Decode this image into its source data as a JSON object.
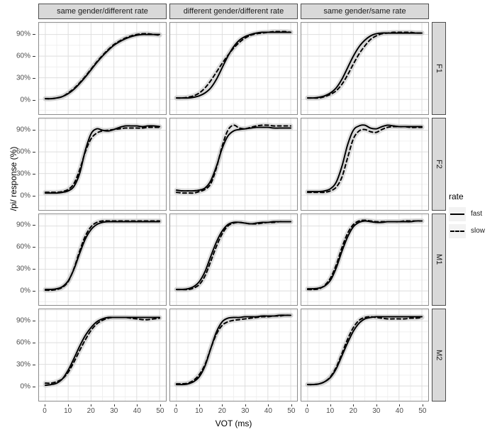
{
  "figure": {
    "y_axis_title": "/pi/ response (%)",
    "x_axis_title": "VOT (ms)"
  },
  "legend": {
    "title": "rate",
    "entries": [
      {
        "label": "fast",
        "style": "solid"
      },
      {
        "label": "slow",
        "style": "dashed"
      }
    ]
  },
  "colors": {
    "strip_bg": "#d9d9d9",
    "strip_border": "#4d4d4d",
    "panel_border": "#8c8c8c",
    "grid_major": "#dedede",
    "grid_minor": "#f0f0f0",
    "line": "#000000",
    "confidence_band": "#c8c8c8",
    "tick_label": "#4d4d4d"
  },
  "chart_data": {
    "type": "line",
    "title": "",
    "xlabel": "VOT (ms)",
    "ylabel": "/pi/ response (%)",
    "xlim": [
      0,
      50
    ],
    "ylim": [
      0,
      100
    ],
    "grid": true,
    "legend_position": "right",
    "x_ticks": [
      0,
      10,
      20,
      30,
      40,
      50
    ],
    "x_minor_ticks": [
      5,
      15,
      25,
      35,
      45
    ],
    "y_ticks": [
      0,
      30,
      60,
      90
    ],
    "y_tick_labels": [
      "0%",
      "30%",
      "60%",
      "90%"
    ],
    "y_minor_ticks": [
      -15,
      15,
      45,
      75,
      105
    ],
    "col_facets": [
      "same gender/different rate",
      "different gender/different rate",
      "same gender/same rate"
    ],
    "row_facets": [
      "F1",
      "F2",
      "M1",
      "M2"
    ],
    "series_names": [
      "fast",
      "slow"
    ],
    "x": [
      0,
      2.5,
      5,
      7.5,
      10,
      12.5,
      15,
      17.5,
      20,
      22.5,
      25,
      27.5,
      30,
      32.5,
      35,
      37.5,
      40,
      42.5,
      45,
      47.5,
      50
    ],
    "panels": [
      {
        "row_label": "F1",
        "col_label": "same gender/different rate",
        "fast": [
          1,
          1,
          2,
          4,
          8,
          14,
          22,
          31,
          41,
          51,
          60,
          68,
          75,
          80,
          84,
          87,
          89,
          90,
          90,
          90,
          90
        ],
        "slow": [
          1,
          1,
          2,
          4,
          9,
          15,
          23,
          32,
          42,
          52,
          61,
          69,
          76,
          81,
          85,
          88,
          90,
          91,
          91,
          90,
          89
        ]
      },
      {
        "row_label": "F1",
        "col_label": "different gender/different rate",
        "fast": [
          2,
          2,
          2,
          3,
          5,
          9,
          16,
          28,
          44,
          60,
          73,
          82,
          87,
          90,
          92,
          93,
          93,
          93,
          93,
          93,
          93
        ],
        "slow": [
          2,
          2,
          3,
          5,
          9,
          16,
          26,
          38,
          50,
          61,
          71,
          79,
          85,
          89,
          91,
          92,
          93,
          94,
          94,
          94,
          93
        ]
      },
      {
        "row_label": "F1",
        "col_label": "same gender/same rate",
        "fast": [
          2,
          2,
          3,
          5,
          9,
          16,
          28,
          44,
          60,
          73,
          82,
          88,
          91,
          92,
          92,
          92,
          92,
          92,
          92,
          92,
          92
        ],
        "slow": [
          2,
          2,
          2,
          4,
          7,
          12,
          21,
          34,
          49,
          63,
          74,
          83,
          88,
          91,
          92,
          93,
          93,
          93,
          93,
          92,
          92
        ]
      },
      {
        "row_label": "F2",
        "col_label": "same gender/different rate",
        "fast": [
          3,
          3,
          3,
          4,
          6,
          12,
          30,
          62,
          85,
          92,
          90,
          89,
          91,
          94,
          96,
          96,
          96,
          95,
          96,
          96,
          95
        ],
        "slow": [
          4,
          4,
          4,
          5,
          8,
          16,
          35,
          60,
          78,
          86,
          89,
          90,
          91,
          92,
          93,
          93,
          93,
          93,
          94,
          94,
          94
        ]
      },
      {
        "row_label": "F2",
        "col_label": "different gender/different rate",
        "fast": [
          7,
          6,
          6,
          6,
          7,
          10,
          20,
          40,
          65,
          82,
          89,
          91,
          92,
          93,
          94,
          94,
          94,
          93,
          93,
          93,
          93
        ],
        "slow": [
          4,
          3,
          3,
          3,
          5,
          8,
          16,
          38,
          68,
          90,
          97,
          93,
          92,
          94,
          96,
          97,
          97,
          96,
          96,
          96,
          96
        ]
      },
      {
        "row_label": "F2",
        "col_label": "same gender/same rate",
        "fast": [
          5,
          5,
          5,
          6,
          9,
          18,
          40,
          70,
          90,
          96,
          97,
          93,
          92,
          95,
          97,
          96,
          95,
          95,
          95,
          95,
          95
        ],
        "slow": [
          4,
          4,
          4,
          4,
          6,
          11,
          25,
          52,
          78,
          89,
          91,
          88,
          87,
          91,
          94,
          95,
          95,
          95,
          94,
          94,
          94
        ]
      },
      {
        "row_label": "M1",
        "col_label": "same gender/different rate",
        "fast": [
          2,
          2,
          3,
          6,
          14,
          30,
          52,
          72,
          85,
          92,
          95,
          96,
          96,
          96,
          96,
          96,
          96,
          96,
          96,
          96,
          96
        ],
        "slow": [
          1,
          1,
          2,
          5,
          13,
          31,
          55,
          76,
          89,
          95,
          97,
          97,
          97,
          97,
          97,
          97,
          97,
          97,
          97,
          97,
          97
        ]
      },
      {
        "row_label": "M1",
        "col_label": "different gender/different rate",
        "fast": [
          2,
          2,
          3,
          6,
          13,
          27,
          48,
          68,
          83,
          92,
          95,
          95,
          94,
          93,
          94,
          95,
          95,
          96,
          96,
          96,
          96
        ],
        "slow": [
          2,
          2,
          2,
          4,
          9,
          21,
          41,
          62,
          79,
          90,
          94,
          95,
          94,
          93,
          93,
          94,
          95,
          95,
          96,
          96,
          96
        ]
      },
      {
        "row_label": "M1",
        "col_label": "same gender/same rate",
        "fast": [
          3,
          3,
          4,
          7,
          15,
          32,
          55,
          75,
          89,
          95,
          97,
          96,
          95,
          95,
          96,
          96,
          96,
          96,
          96,
          97,
          97
        ],
        "slow": [
          2,
          2,
          3,
          8,
          18,
          36,
          60,
          80,
          92,
          97,
          98,
          97,
          96,
          96,
          96,
          96,
          96,
          97,
          97,
          97,
          97
        ]
      },
      {
        "row_label": "M2",
        "col_label": "same gender/different rate",
        "fast": [
          1,
          2,
          4,
          10,
          22,
          38,
          55,
          70,
          81,
          89,
          93,
          95,
          95,
          95,
          95,
          95,
          95,
          95,
          95,
          95,
          95
        ],
        "slow": [
          4,
          4,
          6,
          10,
          19,
          33,
          49,
          64,
          77,
          86,
          91,
          94,
          95,
          95,
          95,
          94,
          93,
          92,
          92,
          93,
          94
        ]
      },
      {
        "row_label": "M2",
        "col_label": "different gender/different rate",
        "fast": [
          2,
          2,
          3,
          6,
          13,
          28,
          52,
          75,
          89,
          94,
          95,
          95,
          96,
          96,
          96,
          97,
          97,
          97,
          98,
          98,
          98
        ],
        "slow": [
          3,
          3,
          4,
          8,
          16,
          30,
          52,
          72,
          84,
          89,
          91,
          92,
          93,
          94,
          95,
          96,
          96,
          97,
          97,
          98,
          98
        ]
      },
      {
        "row_label": "M2",
        "col_label": "same gender/same rate",
        "fast": [
          2,
          2,
          3,
          6,
          12,
          24,
          42,
          60,
          76,
          87,
          93,
          95,
          96,
          96,
          96,
          96,
          96,
          96,
          96,
          96,
          96
        ],
        "slow": [
          2,
          2,
          3,
          6,
          13,
          26,
          45,
          65,
          81,
          91,
          95,
          96,
          95,
          94,
          93,
          93,
          93,
          93,
          94,
          94,
          95
        ]
      }
    ]
  }
}
